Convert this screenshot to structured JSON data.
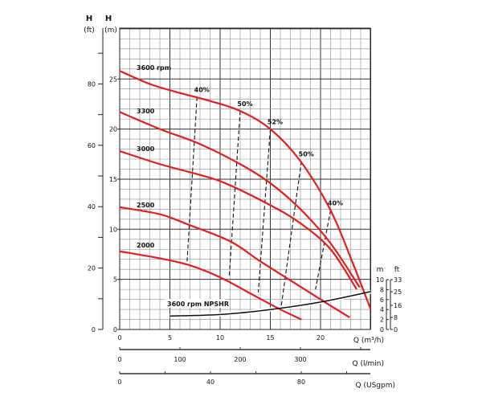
{
  "chart_data": {
    "type": "line",
    "title": "",
    "colors": {
      "curve": "#e31e1e",
      "dashed": "#111111",
      "grid_minor": "#8a8a8a",
      "grid_major": "#333333"
    },
    "x_axis": {
      "label": "Q (m³/h)",
      "range": [
        0,
        25
      ],
      "ticks": [
        0,
        5,
        10,
        15,
        20
      ],
      "tick_labels": [
        "0",
        "5",
        "10",
        "15",
        "20"
      ]
    },
    "x_axis_lmin": {
      "label": "Q (l/min)",
      "ticks": [
        0,
        100,
        200,
        300
      ],
      "tick_labels": [
        "0",
        "100",
        "200",
        "300"
      ]
    },
    "x_axis_usgpm": {
      "label": "Q (USgpm)",
      "ticks": [
        0,
        40,
        80
      ],
      "tick_labels": [
        "0",
        "40",
        "80"
      ]
    },
    "y_axis_m": {
      "label_top": "H",
      "label": "(m)",
      "range": [
        0,
        30
      ],
      "ticks": [
        0,
        5,
        10,
        15,
        20,
        25
      ],
      "tick_labels": [
        "0",
        "5",
        "10",
        "15",
        "20",
        "25"
      ]
    },
    "y_axis_ft": {
      "label_top": "H",
      "label": "(ft)",
      "ticks": [
        0,
        20,
        40,
        60,
        80
      ],
      "tick_labels": [
        "0",
        "20",
        "40",
        "60",
        "80"
      ]
    },
    "npsh_axis_m": {
      "label": "m",
      "range": [
        0,
        10
      ],
      "ticks": [
        0,
        2,
        4,
        6,
        8,
        10
      ],
      "tick_labels": [
        "0",
        "2",
        "4",
        "6",
        "8",
        "10"
      ]
    },
    "npsh_axis_ft": {
      "label": "ft",
      "ticks": [
        0,
        8,
        16,
        25,
        33
      ],
      "tick_labels": [
        "0",
        "8",
        "16",
        "25",
        "33"
      ]
    },
    "grid": true,
    "series": [
      {
        "name": "3600 rpm",
        "points": [
          [
            0,
            25.8
          ],
          [
            3,
            24.5
          ],
          [
            6,
            23.6
          ],
          [
            9,
            22.8
          ],
          [
            12,
            21.8
          ],
          [
            15,
            20.0
          ],
          [
            18,
            16.8
          ],
          [
            21,
            11.9
          ],
          [
            23.3,
            6.4
          ],
          [
            25,
            2.0
          ]
        ]
      },
      {
        "name": "3300",
        "points": [
          [
            0,
            21.7
          ],
          [
            4,
            20.0
          ],
          [
            8,
            18.5
          ],
          [
            12,
            16.5
          ],
          [
            15,
            14.6
          ],
          [
            18,
            12.0
          ],
          [
            21,
            8.6
          ],
          [
            23.9,
            4.2
          ]
        ]
      },
      {
        "name": "3000",
        "points": [
          [
            0,
            17.8
          ],
          [
            4,
            16.5
          ],
          [
            7.7,
            15.5
          ],
          [
            10.5,
            14.6
          ],
          [
            15,
            12.4
          ],
          [
            18,
            10.6
          ],
          [
            21,
            8.0
          ],
          [
            23.6,
            4.0
          ]
        ]
      },
      {
        "name": "2500",
        "points": [
          [
            0,
            12.2
          ],
          [
            4,
            11.5
          ],
          [
            7,
            10.4
          ],
          [
            11,
            8.8
          ],
          [
            14,
            6.8
          ],
          [
            17,
            4.9
          ],
          [
            20,
            3.0
          ],
          [
            22.9,
            1.2
          ]
        ]
      },
      {
        "name": "2000",
        "points": [
          [
            0,
            7.8
          ],
          [
            4,
            7.1
          ],
          [
            7,
            6.4
          ],
          [
            10,
            5.2
          ],
          [
            13,
            3.6
          ],
          [
            16,
            2.0
          ],
          [
            18.1,
            1.0
          ]
        ]
      }
    ],
    "npshr": {
      "name": "3600 rpm NPSHR",
      "points_m": [
        [
          5,
          2.7
        ],
        [
          10,
          3.0
        ],
        [
          15,
          4.0
        ],
        [
          20,
          5.5
        ],
        [
          25,
          7.6
        ]
      ]
    },
    "efficiency_lines": [
      {
        "label": "40%",
        "top": [
          7.7,
          23.2
        ],
        "bottom": [
          6.7,
          6.6
        ]
      },
      {
        "label": "50%",
        "top": [
          12.0,
          21.8
        ],
        "bottom": [
          10.9,
          5.2
        ]
      },
      {
        "label": "52%",
        "top": [
          15.0,
          20.0
        ],
        "bottom": [
          13.8,
          3.7
        ]
      },
      {
        "label": "50%",
        "top": [
          18.1,
          16.8
        ],
        "bottom": [
          16.1,
          2.4
        ]
      },
      {
        "label": "40%",
        "top": [
          21.0,
          11.9
        ],
        "bottom": [
          19.5,
          4.0
        ]
      }
    ]
  }
}
